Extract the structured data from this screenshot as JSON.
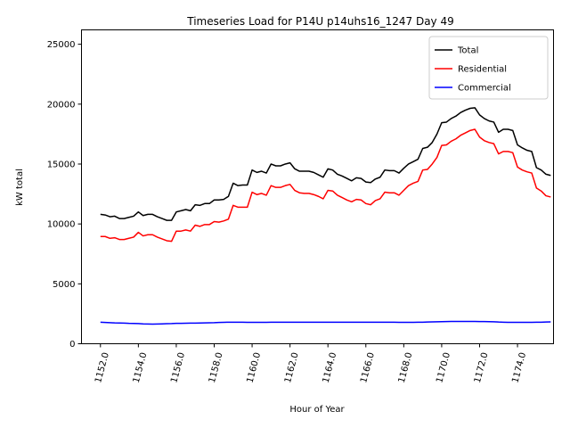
{
  "chart_data": {
    "type": "line",
    "title": "Timeseries Load for P14U p14uhs16_1247  Day 49",
    "xlabel": "Hour of Year",
    "ylabel": "kW total",
    "xlim": [
      1151.0,
      1175.9
    ],
    "ylim": [
      0,
      26200
    ],
    "x_ticks": [
      1152,
      1154,
      1156,
      1158,
      1160,
      1162,
      1164,
      1166,
      1168,
      1170,
      1172,
      1174
    ],
    "x_tick_labels": [
      "1152.0",
      "1154.0",
      "1156.0",
      "1158.0",
      "1160.0",
      "1162.0",
      "1164.0",
      "1166.0",
      "1168.0",
      "1170.0",
      "1172.0",
      "1174.0"
    ],
    "y_ticks": [
      0,
      5000,
      10000,
      15000,
      20000,
      25000
    ],
    "y_tick_labels": [
      "0",
      "5000",
      "10000",
      "15000",
      "20000",
      "25000"
    ],
    "legend_position": "top-right",
    "x": [
      1152.0,
      1152.25,
      1152.5,
      1152.75,
      1153.0,
      1153.25,
      1153.5,
      1153.75,
      1154.0,
      1154.25,
      1154.5,
      1154.75,
      1155.0,
      1155.25,
      1155.5,
      1155.75,
      1156.0,
      1156.25,
      1156.5,
      1156.75,
      1157.0,
      1157.25,
      1157.5,
      1157.75,
      1158.0,
      1158.25,
      1158.5,
      1158.75,
      1159.0,
      1159.25,
      1159.5,
      1159.75,
      1160.0,
      1160.25,
      1160.5,
      1160.75,
      1161.0,
      1161.25,
      1161.5,
      1161.75,
      1162.0,
      1162.25,
      1162.5,
      1162.75,
      1163.0,
      1163.25,
      1163.5,
      1163.75,
      1164.0,
      1164.25,
      1164.5,
      1164.75,
      1165.0,
      1165.25,
      1165.5,
      1165.75,
      1166.0,
      1166.25,
      1166.5,
      1166.75,
      1167.0,
      1167.25,
      1167.5,
      1167.75,
      1168.0,
      1168.25,
      1168.5,
      1168.75,
      1169.0,
      1169.25,
      1169.5,
      1169.75,
      1170.0,
      1170.25,
      1170.5,
      1170.75,
      1171.0,
      1171.25,
      1171.5,
      1171.75,
      1172.0,
      1172.25,
      1172.5,
      1172.75,
      1173.0,
      1173.25,
      1173.5,
      1173.75,
      1174.0,
      1174.25,
      1174.5,
      1174.75,
      1175.0,
      1175.25,
      1175.5,
      1175.75
    ],
    "series": [
      {
        "name": "Total",
        "color": "#000000",
        "values": [
          10800,
          10750,
          10600,
          10650,
          10450,
          10450,
          10550,
          10650,
          11000,
          10700,
          10800,
          10800,
          10600,
          10450,
          10300,
          10300,
          11000,
          11100,
          11200,
          11100,
          11600,
          11550,
          11700,
          11700,
          12000,
          12000,
          12050,
          12300,
          13400,
          13200,
          13250,
          13250,
          14500,
          14300,
          14400,
          14250,
          15000,
          14850,
          14850,
          15000,
          15100,
          14600,
          14400,
          14400,
          14400,
          14300,
          14100,
          13900,
          14600,
          14500,
          14150,
          14000,
          13800,
          13600,
          13850,
          13800,
          13500,
          13450,
          13750,
          13900,
          14500,
          14450,
          14450,
          14250,
          14650,
          15000,
          15200,
          15400,
          16300,
          16400,
          16800,
          17500,
          18450,
          18500,
          18800,
          19000,
          19300,
          19500,
          19650,
          19700,
          19100,
          18800,
          18600,
          18500,
          17650,
          17900,
          17900,
          17800,
          16600,
          16350,
          16150,
          16050,
          14700,
          14500,
          14150,
          14050
        ]
      },
      {
        "name": "Residential",
        "color": "#ff0000",
        "values": [
          8950,
          8950,
          8800,
          8850,
          8700,
          8700,
          8800,
          8900,
          9300,
          9000,
          9100,
          9100,
          8900,
          8750,
          8600,
          8550,
          9400,
          9400,
          9500,
          9400,
          9900,
          9800,
          9950,
          9950,
          10200,
          10150,
          10250,
          10400,
          11550,
          11400,
          11400,
          11400,
          12650,
          12450,
          12550,
          12400,
          13200,
          13050,
          13050,
          13200,
          13300,
          12800,
          12600,
          12550,
          12550,
          12450,
          12300,
          12100,
          12800,
          12750,
          12400,
          12200,
          12000,
          11850,
          12050,
          12000,
          11700,
          11600,
          11950,
          12100,
          12650,
          12600,
          12600,
          12400,
          12800,
          13200,
          13400,
          13550,
          14500,
          14550,
          15000,
          15550,
          16550,
          16600,
          16900,
          17100,
          17400,
          17600,
          17800,
          17900,
          17250,
          16950,
          16800,
          16700,
          15850,
          16050,
          16050,
          15950,
          14750,
          14500,
          14350,
          14250,
          13000,
          12750,
          12350,
          12250
        ]
      },
      {
        "name": "Commercial",
        "color": "#0000ff",
        "values": [
          1800,
          1780,
          1760,
          1740,
          1730,
          1720,
          1700,
          1690,
          1680,
          1660,
          1650,
          1640,
          1650,
          1660,
          1670,
          1680,
          1700,
          1700,
          1710,
          1720,
          1720,
          1730,
          1740,
          1750,
          1760,
          1780,
          1790,
          1800,
          1800,
          1800,
          1800,
          1790,
          1790,
          1790,
          1790,
          1790,
          1800,
          1800,
          1800,
          1800,
          1800,
          1800,
          1800,
          1800,
          1800,
          1800,
          1800,
          1800,
          1800,
          1800,
          1800,
          1800,
          1800,
          1800,
          1800,
          1800,
          1800,
          1800,
          1800,
          1800,
          1800,
          1800,
          1800,
          1790,
          1790,
          1790,
          1790,
          1800,
          1800,
          1810,
          1820,
          1830,
          1840,
          1850,
          1860,
          1860,
          1860,
          1860,
          1860,
          1860,
          1850,
          1850,
          1840,
          1830,
          1810,
          1800,
          1790,
          1790,
          1790,
          1790,
          1790,
          1790,
          1800,
          1800,
          1810,
          1820
        ]
      }
    ]
  }
}
